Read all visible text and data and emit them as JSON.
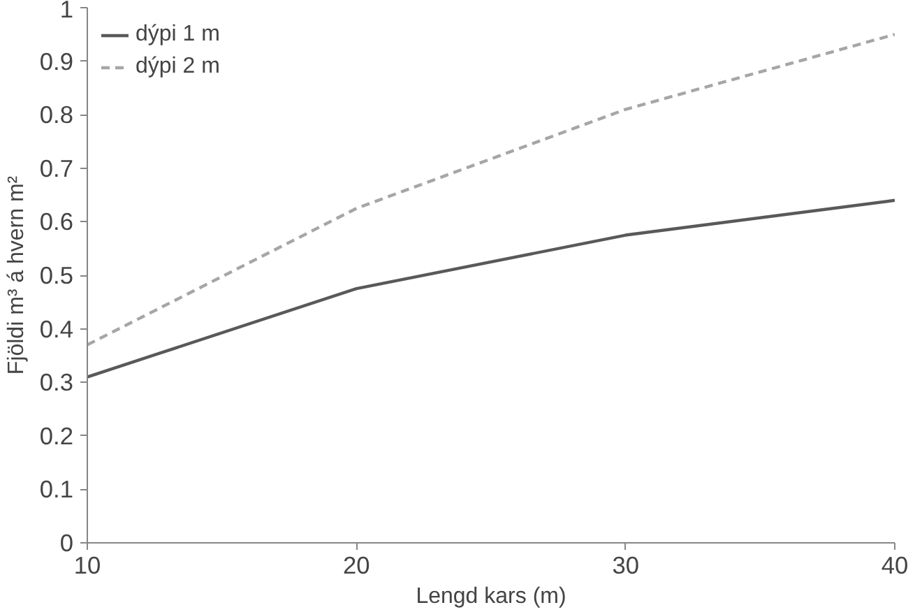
{
  "chart_data": {
    "type": "line",
    "xlabel": "Lengd kars (m)",
    "ylabel": "Fjöldi m³ á hvern m²",
    "x": [
      10,
      20,
      30,
      40
    ],
    "series": [
      {
        "name": "dýpi 1 m",
        "color": "#595959",
        "values": [
          0.31,
          0.475,
          0.575,
          0.64
        ],
        "line_style": "solid"
      },
      {
        "name": "dýpi 2 m",
        "color": "#a6a6a6",
        "values": [
          0.37,
          0.625,
          0.81,
          0.95
        ],
        "line_style": "dashed"
      }
    ],
    "xlim": [
      10,
      40
    ],
    "xticks": [
      10,
      20,
      30,
      40
    ],
    "ylim": [
      0,
      1
    ],
    "yticks": [
      0,
      0.1,
      0.2,
      0.3,
      0.4,
      0.5,
      0.6,
      0.7,
      0.8,
      0.9,
      1
    ],
    "grid": false,
    "legend": "top left",
    "marker": "none"
  }
}
